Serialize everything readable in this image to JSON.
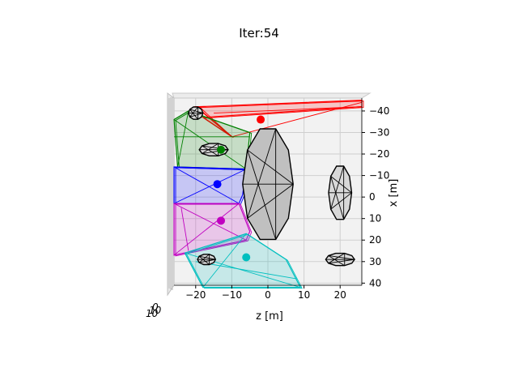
{
  "title": "Iter:54",
  "chart_data": {
    "type": "3d-scatter-with-polyhedra",
    "title": "Iter:54",
    "xlabel": "z [m]",
    "ylabel": "x [m]",
    "xlim": [
      -26,
      26
    ],
    "ylim": [
      41,
      -46
    ],
    "xticks": [
      -20,
      -10,
      0,
      10,
      20
    ],
    "yticks": [
      -40,
      -30,
      -20,
      -10,
      0,
      10,
      20,
      30,
      40
    ],
    "xtick_labels": [
      "−20",
      "−10",
      "0",
      "10",
      "20"
    ],
    "ytick_labels": [
      "−40",
      "−30",
      "−20",
      "−10",
      "0",
      "10",
      "20",
      "30",
      "40"
    ],
    "zaxis_labels": [
      "10",
      "10",
      "0"
    ],
    "grid": true,
    "clusters": [
      {
        "color": "#ff0000",
        "center": [
          -2,
          -36
        ],
        "hull": [
          [
            -19,
            -42
          ],
          [
            26,
            -45
          ],
          [
            26,
            -42
          ],
          [
            -18,
            -37
          ],
          [
            -10,
            -28
          ],
          [
            -20,
            -42
          ]
        ],
        "inner": [
          [
            [
              -19,
              -42
            ],
            [
              -10,
              -28
            ]
          ],
          [
            [
              26,
              -44
            ],
            [
              -10,
              -28
            ]
          ],
          [
            [
              -15,
              -39
            ],
            [
              26,
              -42
            ]
          ]
        ]
      },
      {
        "color": "#008000",
        "center": [
          -13,
          -22
        ],
        "hull": [
          [
            -26,
            -36
          ],
          [
            -22,
            -40
          ],
          [
            -5,
            -30
          ],
          [
            -6,
            -13
          ],
          [
            -25,
            -14
          ]
        ],
        "inner": [
          [
            [
              -26,
              -36
            ],
            [
              -6,
              -13
            ]
          ],
          [
            [
              -22,
              -40
            ],
            [
              -25,
              -14
            ]
          ],
          [
            [
              -26,
              -28
            ],
            [
              -5,
              -28
            ]
          ]
        ]
      },
      {
        "color": "#0000ff",
        "center": [
          -14,
          -6
        ],
        "hull": [
          [
            -26,
            -14
          ],
          [
            -6,
            -13
          ],
          [
            -7,
            -1
          ],
          [
            -8,
            3
          ],
          [
            -26,
            3
          ]
        ],
        "inner": [
          [
            [
              -26,
              -14
            ],
            [
              -8,
              3
            ]
          ],
          [
            [
              -6,
              -13
            ],
            [
              -26,
              3
            ]
          ]
        ]
      },
      {
        "color": "#c000c0",
        "center": [
          -13,
          11
        ],
        "hull": [
          [
            -26,
            3
          ],
          [
            -8,
            3
          ],
          [
            -5,
            16
          ],
          [
            -6,
            20
          ],
          [
            -26,
            27
          ]
        ],
        "inner": [
          [
            [
              -26,
              3
            ],
            [
              -6,
              20
            ]
          ],
          [
            [
              -8,
              3
            ],
            [
              -26,
              27
            ]
          ],
          [
            [
              -24,
              5
            ],
            [
              -22,
              25
            ]
          ]
        ]
      },
      {
        "color": "#00bfbf",
        "center": [
          -6,
          28
        ],
        "hull": [
          [
            -23,
            26
          ],
          [
            -6,
            17
          ],
          [
            5,
            29
          ],
          [
            9,
            42
          ],
          [
            -18,
            42
          ]
        ],
        "inner": [
          [
            [
              -23,
              26
            ],
            [
              9,
              42
            ]
          ],
          [
            [
              -6,
              17
            ],
            [
              -18,
              42
            ]
          ],
          [
            [
              -20,
              30
            ],
            [
              8,
              38
            ]
          ]
        ]
      }
    ],
    "obstacles": [
      {
        "name": "large",
        "color": "#c0c0c0",
        "cx": 0,
        "cy": -6,
        "rx": 7,
        "ry": 27
      },
      {
        "name": "right-mid",
        "color": "#d8d8d8",
        "cx": 20,
        "cy": -2,
        "rx": 3.2,
        "ry": 13
      },
      {
        "name": "right-low",
        "color": "#d8d8d8",
        "cx": 20,
        "cy": 29,
        "rx": 4,
        "ry": 3
      },
      {
        "name": "left-top",
        "color": "#d8d8d8",
        "cx": -20,
        "cy": -39,
        "rx": 2,
        "ry": 3
      },
      {
        "name": "left-mid",
        "color": "#d8d8d8",
        "cx": -15,
        "cy": -22,
        "rx": 4,
        "ry": 3
      },
      {
        "name": "left-low",
        "color": "#d8d8d8",
        "cx": -17,
        "cy": 29,
        "rx": 2.5,
        "ry": 2.5
      }
    ]
  }
}
